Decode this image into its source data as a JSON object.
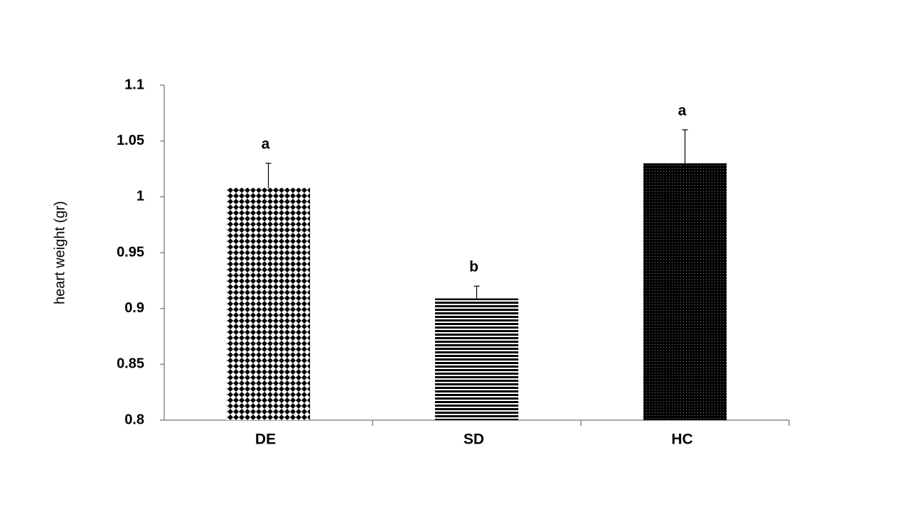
{
  "chart_data": {
    "type": "bar",
    "y_label": "heart weight (gr)",
    "categories": [
      "DE",
      "SD",
      "HC"
    ],
    "values": [
      1.008,
      0.909,
      1.03
    ],
    "errors": [
      0.022,
      0.011,
      0.03
    ],
    "annotations": [
      "a",
      "b",
      "a"
    ],
    "patterns": [
      "diamonds",
      "stripes",
      "dots"
    ],
    "color": "#000000",
    "ylim": [
      0.8,
      1.1
    ],
    "yticks": [
      0.8,
      0.85,
      0.9,
      0.95,
      1,
      1.05,
      1.1
    ],
    "grid": false
  }
}
